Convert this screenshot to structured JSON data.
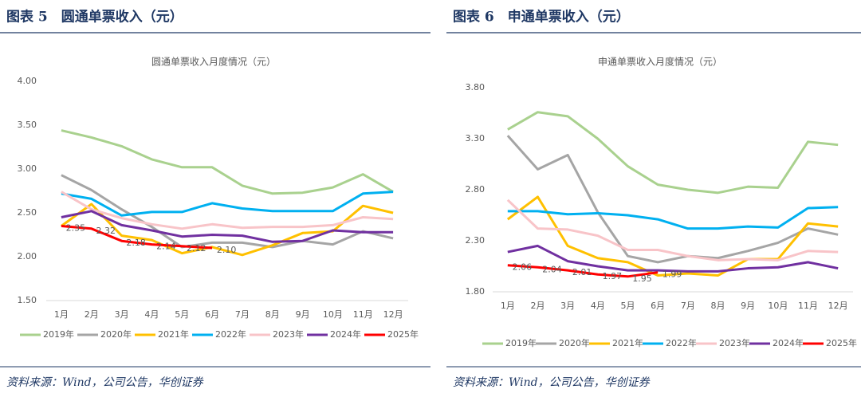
{
  "headers": [
    "图表 5　圆通单票收入（元）",
    "图表 6　申通单票收入（元）"
  ],
  "sources": [
    "资料来源：Wind，公司公告，华创证券",
    "资料来源：Wind，公司公告，华创证券"
  ],
  "chart_data": [
    {
      "type": "line",
      "title": "圆通单票收入月度情况（元）",
      "categories": [
        "1月",
        "2月",
        "3月",
        "4月",
        "5月",
        "6月",
        "7月",
        "8月",
        "9月",
        "10月",
        "11月",
        "12月"
      ],
      "ylim": [
        1.5,
        4.0
      ],
      "yticks": [
        {
          "value": 1.5,
          "label": "1.50"
        },
        {
          "value": 2.0,
          "label": "2.00"
        },
        {
          "value": 2.5,
          "label": "2.50"
        },
        {
          "value": 3.0,
          "label": "3.00"
        },
        {
          "value": 3.5,
          "label": "3.50"
        },
        {
          "value": 4.0,
          "label": "4.00"
        }
      ],
      "grid": false,
      "legend": "bottom",
      "series": [
        {
          "name": "2019年",
          "color": "#a9d18e",
          "values": [
            3.44,
            3.36,
            3.26,
            3.11,
            3.02,
            3.02,
            2.81,
            2.72,
            2.73,
            2.79,
            2.94,
            2.74
          ]
        },
        {
          "name": "2020年",
          "color": "#a5a5a5",
          "values": [
            2.93,
            2.76,
            2.54,
            2.34,
            2.11,
            2.16,
            2.16,
            2.11,
            2.18,
            2.14,
            2.29,
            2.21
          ]
        },
        {
          "name": "2021年",
          "color": "#ffc000",
          "values": [
            2.35,
            2.6,
            2.24,
            2.19,
            2.04,
            2.11,
            2.02,
            2.13,
            2.27,
            2.29,
            2.58,
            2.5
          ]
        },
        {
          "name": "2022年",
          "color": "#00b0f0",
          "values": [
            2.72,
            2.66,
            2.47,
            2.51,
            2.51,
            2.61,
            2.55,
            2.52,
            2.52,
            2.52,
            2.72,
            2.74
          ]
        },
        {
          "name": "2023年",
          "color": "#f8c4c8",
          "values": [
            2.74,
            2.54,
            2.44,
            2.37,
            2.32,
            2.37,
            2.33,
            2.34,
            2.34,
            2.36,
            2.45,
            2.43
          ]
        },
        {
          "name": "2024年",
          "color": "#7030a0",
          "values": [
            2.45,
            2.52,
            2.36,
            2.3,
            2.23,
            2.25,
            2.24,
            2.17,
            2.18,
            2.3,
            2.28,
            2.28
          ]
        },
        {
          "name": "2025年",
          "color": "#ff0000",
          "values": [
            2.35,
            2.32,
            2.18,
            2.14,
            2.12,
            2.1,
            null,
            null,
            null,
            null,
            null,
            null
          ],
          "value_labels": [
            "2.35",
            "2.32",
            "2.18",
            "2.14",
            "2.12",
            "2.10",
            null,
            null,
            null,
            null,
            null,
            null
          ]
        }
      ]
    },
    {
      "type": "line",
      "title": "申通单票收入月度情况（元）",
      "categories": [
        "1月",
        "2月",
        "3月",
        "4月",
        "5月",
        "6月",
        "7月",
        "8月",
        "9月",
        "10月",
        "11月",
        "12月"
      ],
      "ylim": [
        1.8,
        3.8
      ],
      "yticks": [
        {
          "value": 1.8,
          "label": "1.80"
        },
        {
          "value": 2.3,
          "label": "2.30"
        },
        {
          "value": 2.8,
          "label": "2.80"
        },
        {
          "value": 3.3,
          "label": "3.30"
        },
        {
          "value": 3.8,
          "label": "3.80"
        }
      ],
      "grid": false,
      "legend": "bottom",
      "series": [
        {
          "name": "2019年",
          "color": "#a9d18e",
          "values": [
            3.39,
            3.56,
            3.52,
            3.3,
            3.03,
            2.85,
            2.8,
            2.77,
            2.83,
            2.82,
            3.27,
            3.24
          ]
        },
        {
          "name": "2020年",
          "color": "#a5a5a5",
          "values": [
            3.33,
            3.0,
            3.14,
            2.58,
            2.15,
            2.09,
            2.15,
            2.13,
            2.2,
            2.28,
            2.42,
            2.36
          ]
        },
        {
          "name": "2021年",
          "color": "#ffc000",
          "values": [
            2.51,
            2.73,
            2.25,
            2.13,
            2.09,
            1.96,
            1.98,
            1.96,
            2.12,
            2.12,
            2.47,
            2.44
          ]
        },
        {
          "name": "2022年",
          "color": "#00b0f0",
          "values": [
            2.59,
            2.59,
            2.56,
            2.57,
            2.55,
            2.51,
            2.42,
            2.42,
            2.44,
            2.43,
            2.62,
            2.63
          ]
        },
        {
          "name": "2023年",
          "color": "#f8c4c8",
          "values": [
            2.7,
            2.42,
            2.41,
            2.35,
            2.21,
            2.21,
            2.15,
            2.11,
            2.12,
            2.11,
            2.2,
            2.19
          ]
        },
        {
          "name": "2024年",
          "color": "#7030a0",
          "values": [
            2.19,
            2.25,
            2.1,
            2.05,
            2.01,
            2.01,
            2.0,
            2.0,
            2.03,
            2.04,
            2.09,
            2.03
          ]
        },
        {
          "name": "2025年",
          "color": "#ff0000",
          "values": [
            2.06,
            2.04,
            2.01,
            1.97,
            1.95,
            1.99,
            null,
            null,
            null,
            null,
            null,
            null
          ],
          "value_labels": [
            "2.06",
            "2.04",
            "2.01",
            "1.97",
            "1.95",
            "1.99",
            null,
            null,
            null,
            null,
            null,
            null
          ]
        }
      ]
    }
  ]
}
